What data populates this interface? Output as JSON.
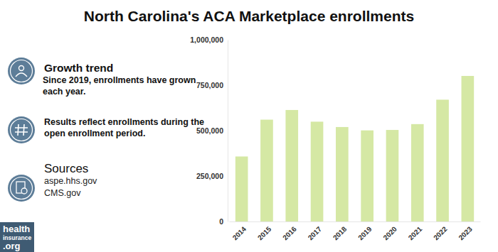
{
  "chart_data": {
    "type": "bar",
    "title": "North Carolina's ACA Marketplace enrollments",
    "categories": [
      "2014",
      "2015",
      "2016",
      "2017",
      "2018",
      "2019",
      "2020",
      "2021",
      "2022",
      "2023"
    ],
    "values": [
      357584,
      560357,
      613487,
      549158,
      519803,
      501271,
      503636,
      535803,
      670223,
      800850
    ],
    "color": "#d5e8a4",
    "ylim": [
      0,
      1000000
    ],
    "yticks": [
      0,
      {
        "value": 250000,
        "label": "250,000"
      },
      {
        "value": 500000,
        "label": "500,000"
      },
      {
        "value": 750000,
        "label": "750,000"
      },
      {
        "value": 1000000,
        "label": "1,000,000"
      }
    ],
    "grid": false,
    "annotations": [
      "Growth trend",
      "Since 2019, enrollments have grown each year.",
      "Results reflect enrollments during the open enrollment period.",
      "Sources",
      "aspe.hhs.gov",
      "CMS.gov",
      "health",
      "insurance",
      ".org"
    ]
  }
}
